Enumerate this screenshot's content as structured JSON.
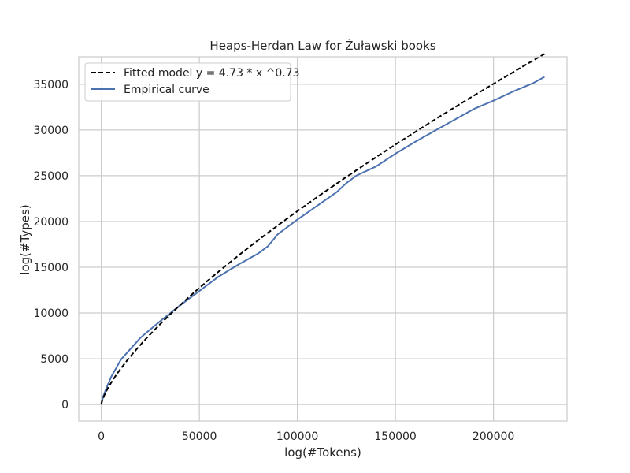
{
  "chart_data": {
    "type": "line",
    "title": "Heaps-Herdan Law for Żuławski books",
    "xlabel": "log(#Tokens)",
    "ylabel": "log(#Types)",
    "xlim": [
      -11500,
      237500
    ],
    "ylim": [
      -1800,
      38000
    ],
    "xticks": [
      0,
      50000,
      100000,
      150000,
      200000
    ],
    "yticks": [
      0,
      5000,
      10000,
      15000,
      20000,
      25000,
      30000,
      35000
    ],
    "grid": true,
    "legend_position": "top-left",
    "colors": {
      "fitted": "#000000",
      "empirical": "#4c72b0",
      "grid": "#cccccc",
      "frame": "#cccccc"
    },
    "series": [
      {
        "name": "Fitted model y = 4.73 * x ^0.73",
        "style": "dashed",
        "model": {
          "a": 4.73,
          "b": 0.73
        },
        "x_range": [
          0,
          226000
        ]
      },
      {
        "name": "Empirical curve",
        "style": "solid",
        "x": [
          0,
          1000,
          3000,
          5000,
          10000,
          20000,
          30000,
          40000,
          50000,
          60000,
          70000,
          80000,
          85000,
          90000,
          100000,
          110000,
          120000,
          125000,
          130000,
          140000,
          150000,
          160000,
          170000,
          180000,
          190000,
          200000,
          210000,
          220000,
          226000
        ],
        "y": [
          0,
          900,
          2000,
          3000,
          4900,
          7300,
          9100,
          10800,
          12400,
          14000,
          15300,
          16500,
          17300,
          18600,
          20200,
          21700,
          23200,
          24200,
          25000,
          26000,
          27400,
          28700,
          29900,
          31100,
          32300,
          33200,
          34200,
          35100,
          35800
        ]
      }
    ]
  }
}
